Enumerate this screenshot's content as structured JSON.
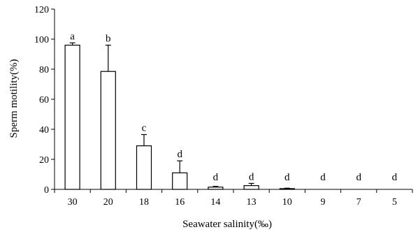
{
  "chart_data": {
    "type": "bar",
    "title": "",
    "xlabel": "Seawater salinity(‰)",
    "ylabel": "Sperm motility(%)",
    "categories": [
      "30",
      "20",
      "18",
      "16",
      "14",
      "13",
      "10",
      "9",
      "7",
      "5"
    ],
    "values": [
      96,
      78.5,
      29,
      11,
      1.5,
      2.5,
      0.5,
      0,
      0,
      0
    ],
    "error": [
      1.5,
      17.5,
      7.5,
      8,
      0.5,
      1.5,
      0.3,
      0,
      0,
      0
    ],
    "significance_labels": [
      "a",
      "b",
      "c",
      "d",
      "d",
      "d",
      "d",
      "d",
      "d",
      "d"
    ],
    "ylim": [
      0,
      120
    ],
    "yticks": [
      "0",
      "20",
      "40",
      "60",
      "80",
      "100",
      "120"
    ],
    "grid": false,
    "bar_fill": "#ffffff",
    "bar_stroke": "#000000"
  }
}
